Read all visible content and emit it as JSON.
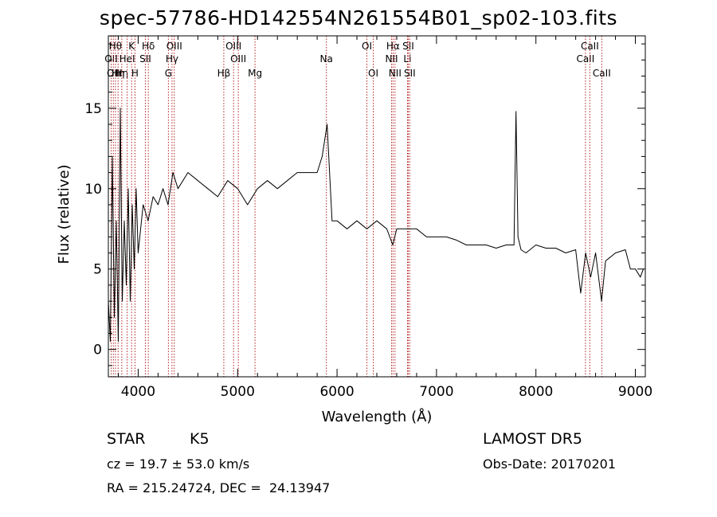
{
  "header": {
    "title": "spec-57786-HD142554N261554B01_sp02-103.fits"
  },
  "info": {
    "object_class": "STAR",
    "subclass": "K5",
    "survey": "LAMOST DR5",
    "redshift": "cz = 19.7 ± 53.0 km/s",
    "obs_date": "Obs-Date: 20170201",
    "coords": "RA = 215.24724, DEC =  24.13947"
  },
  "chart_data": {
    "type": "line",
    "title": "spec-57786-HD142554N261554B01_sp02-103.fits",
    "xlabel": "Wavelength (Å)",
    "ylabel": "Flux (relative)",
    "xlim": [
      3700,
      9100
    ],
    "ylim": [
      -1.7,
      19.5
    ],
    "xticks": [
      4000,
      5000,
      6000,
      7000,
      8000,
      9000
    ],
    "yticks": [
      0,
      5,
      10,
      15
    ],
    "line_color": "#000000",
    "marker_color": "#b22222",
    "series": [
      {
        "x": [
          3700,
          3720,
          3740,
          3760,
          3780,
          3800,
          3820,
          3840,
          3860,
          3880,
          3900,
          3920,
          3940,
          3960,
          3980,
          4000,
          4050,
          4100,
          4150,
          4200,
          4250,
          4300,
          4350,
          4400,
          4500,
          4600,
          4700,
          4800,
          4900,
          5000,
          5100,
          5200,
          5300,
          5400,
          5500,
          5600,
          5700,
          5800,
          5850,
          5900,
          5950,
          6000,
          6100,
          6200,
          6300,
          6400,
          6500,
          6560,
          6600,
          6700,
          6800,
          6900,
          7000,
          7100,
          7200,
          7300,
          7400,
          7500,
          7600,
          7700,
          7780,
          7800,
          7820,
          7850,
          7900,
          8000,
          8100,
          8200,
          8300,
          8400,
          8450,
          8500,
          8550,
          8600,
          8660,
          8700,
          8800,
          8900,
          8950,
          9000,
          9050,
          9080
        ],
        "y": [
          3.0,
          0.5,
          12.0,
          2.0,
          8.0,
          0.5,
          15.0,
          3.0,
          8.0,
          4.0,
          10.0,
          3.0,
          9.0,
          5.0,
          10.0,
          6.0,
          9.0,
          8.0,
          9.5,
          9.0,
          10.0,
          9.0,
          11.0,
          10.0,
          11.0,
          10.5,
          10.0,
          9.5,
          10.5,
          10.0,
          9.0,
          10.0,
          10.5,
          10.0,
          10.5,
          11.0,
          11.0,
          11.0,
          12.0,
          14.0,
          8.0,
          8.0,
          7.5,
          8.0,
          7.5,
          8.0,
          7.5,
          6.5,
          7.5,
          7.5,
          7.5,
          7.0,
          7.0,
          7.0,
          6.8,
          6.5,
          6.5,
          6.5,
          6.3,
          6.5,
          6.5,
          14.8,
          7.0,
          6.2,
          6.0,
          6.5,
          6.3,
          6.3,
          6.0,
          6.2,
          3.5,
          6.0,
          4.5,
          6.0,
          3.0,
          5.5,
          6.0,
          6.2,
          5.0,
          5.0,
          4.5,
          5.0
        ]
      }
    ],
    "lines": [
      {
        "wl": 3728,
        "label": "OII",
        "row": 2
      },
      {
        "wl": 3750,
        "label": "OII",
        "row": 3
      },
      {
        "wl": 3771,
        "label": "Hθ",
        "row": 1
      },
      {
        "wl": 3798,
        "label": "Hη",
        "row": 3
      },
      {
        "wl": 3835,
        "label": "Hη",
        "row": 3
      },
      {
        "wl": 3889,
        "label": "HeI",
        "row": 2
      },
      {
        "wl": 3934,
        "label": "K",
        "row": 1
      },
      {
        "wl": 3968,
        "label": "H",
        "row": 3
      },
      {
        "wl": 4072,
        "label": "SII",
        "row": 2
      },
      {
        "wl": 4102,
        "label": "Hδ",
        "row": 1
      },
      {
        "wl": 4304,
        "label": "G",
        "row": 3
      },
      {
        "wl": 4340,
        "label": "Hγ",
        "row": 2
      },
      {
        "wl": 4363,
        "label": "OIII",
        "row": 1
      },
      {
        "wl": 4861,
        "label": "Hβ",
        "row": 3
      },
      {
        "wl": 4959,
        "label": "OIII",
        "row": 1
      },
      {
        "wl": 5007,
        "label": "OIII",
        "row": 2
      },
      {
        "wl": 5175,
        "label": "Mg",
        "row": 3
      },
      {
        "wl": 5893,
        "label": "Na",
        "row": 2
      },
      {
        "wl": 6300,
        "label": "OI",
        "row": 1
      },
      {
        "wl": 6364,
        "label": "OI",
        "row": 3
      },
      {
        "wl": 6548,
        "label": "NII",
        "row": 2
      },
      {
        "wl": 6563,
        "label": "Hα",
        "row": 1
      },
      {
        "wl": 6583,
        "label": "NII",
        "row": 3
      },
      {
        "wl": 6708,
        "label": "Li",
        "row": 2
      },
      {
        "wl": 6716,
        "label": "SII",
        "row": 1
      },
      {
        "wl": 6731,
        "label": "SII",
        "row": 3
      },
      {
        "wl": 8498,
        "label": "CaII",
        "row": 2
      },
      {
        "wl": 8542,
        "label": "CaII",
        "row": 1
      },
      {
        "wl": 8662,
        "label": "CaII",
        "row": 3
      }
    ]
  }
}
